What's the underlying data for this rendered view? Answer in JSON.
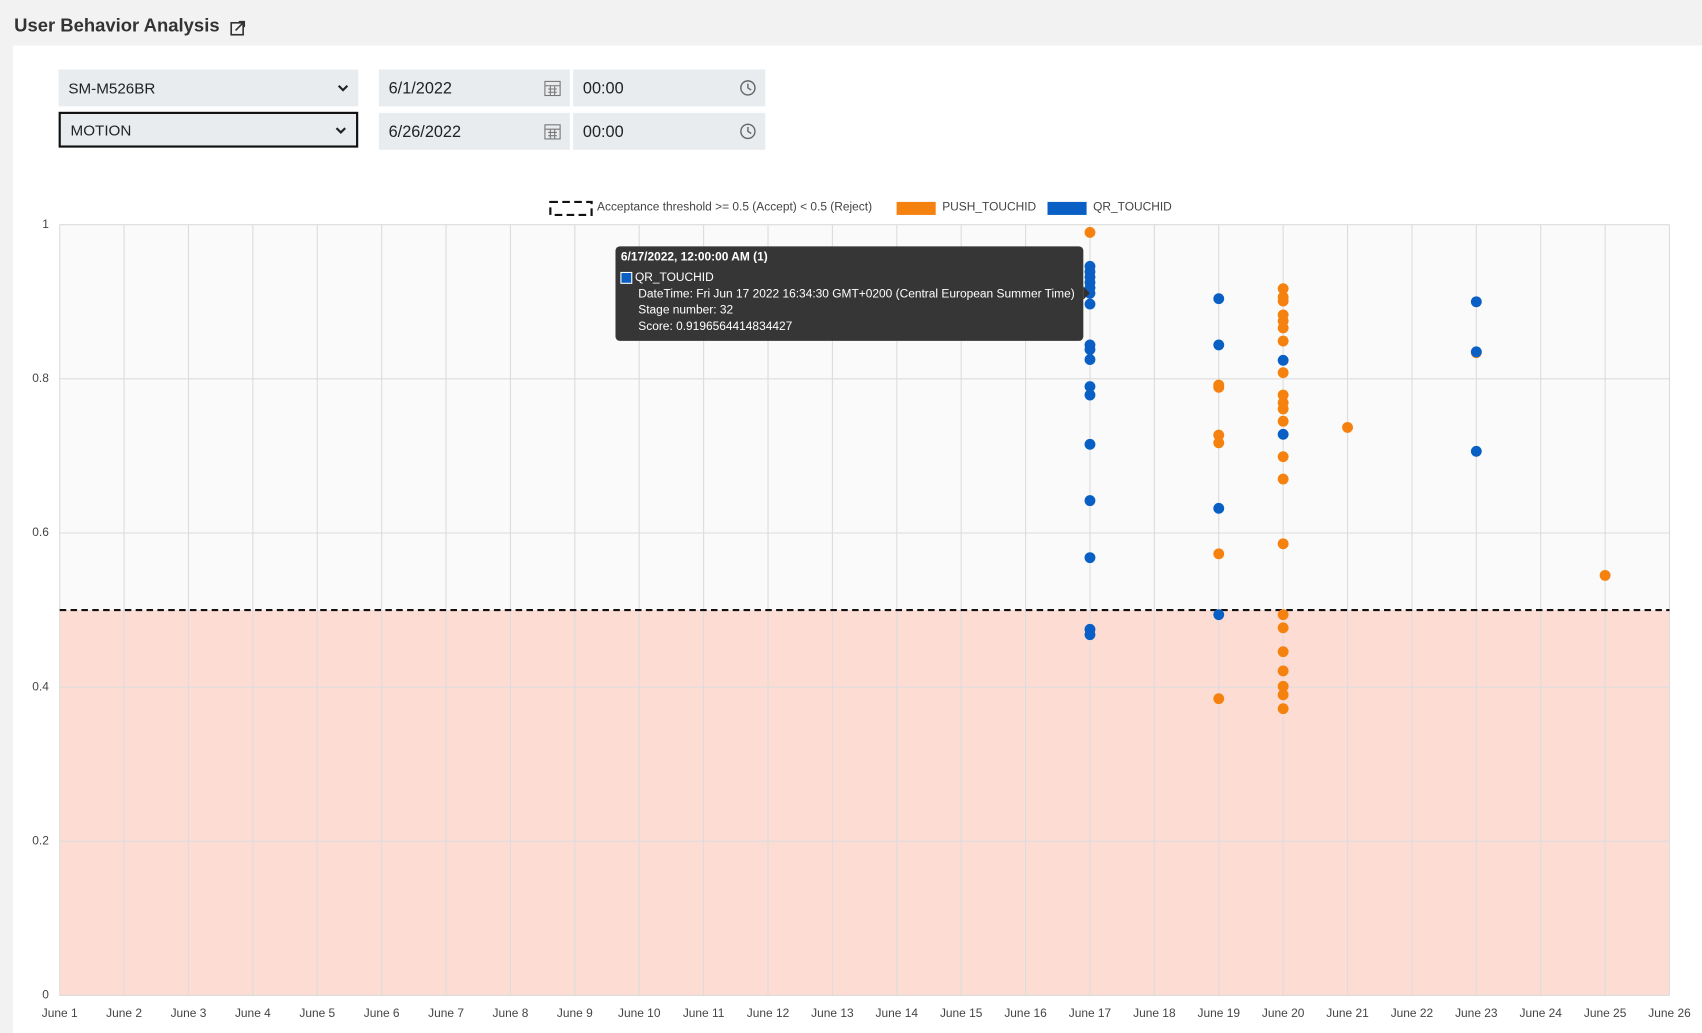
{
  "header": {
    "title": "User Behavior Analysis"
  },
  "filters": {
    "device": "SM-M526BR",
    "method": "MOTION",
    "start_date": "6/1/2022",
    "start_time": "00:00",
    "end_date": "6/26/2022",
    "end_time": "00:00"
  },
  "chart_data": {
    "type": "scatter",
    "threshold": 0.5,
    "threshold_legend": "Acceptance threshold  >= 0.5 (Accept)  < 0.5 (Reject)",
    "categories": [
      "June 1",
      "June 2",
      "June 3",
      "June 4",
      "June 5",
      "June 6",
      "June 7",
      "June 8",
      "June 9",
      "June 10",
      "June 11",
      "June 12",
      "June 13",
      "June 14",
      "June 15",
      "June 16",
      "June 17",
      "June 18",
      "June 19",
      "June 20",
      "June 21",
      "June 22",
      "June 23",
      "June 24",
      "June 25",
      "June 26"
    ],
    "ylim": [
      0,
      1
    ],
    "yticks": [
      0,
      0.2,
      0.4,
      0.6,
      0.8,
      1
    ],
    "grid": true,
    "series": [
      {
        "name": "PUSH_TOUCHID",
        "color": "#f5820f",
        "x": [
          "June 17",
          "June 19",
          "June 19",
          "June 19",
          "June 19",
          "June 19",
          "June 19",
          "June 20",
          "June 20",
          "June 20",
          "June 20",
          "June 20",
          "June 20",
          "June 20",
          "June 20",
          "June 20",
          "June 20",
          "June 20",
          "June 20",
          "June 20",
          "June 20",
          "June 20",
          "June 20",
          "June 20",
          "June 20",
          "June 20",
          "June 20",
          "June 20",
          "June 20",
          "June 21",
          "June 23",
          "June 25"
        ],
        "values": [
          0.99,
          0.792,
          0.789,
          0.727,
          0.717,
          0.573,
          0.385,
          0.917,
          0.906,
          0.901,
          0.883,
          0.875,
          0.866,
          0.849,
          0.808,
          0.779,
          0.769,
          0.761,
          0.745,
          0.699,
          0.67,
          0.586,
          0.494,
          0.477,
          0.446,
          0.421,
          0.401,
          0.39,
          0.372,
          0.737,
          0.834,
          0.545
        ]
      },
      {
        "name": "QR_TOUCHID",
        "color": "#0a5fc4",
        "x": [
          "June 17",
          "June 17",
          "June 17",
          "June 17",
          "June 17",
          "June 17",
          "June 17",
          "June 17",
          "June 17",
          "June 17",
          "June 17",
          "June 17",
          "June 17",
          "June 17",
          "June 17",
          "June 17",
          "June 17",
          "June 19",
          "June 19",
          "June 19",
          "June 19",
          "June 20",
          "June 20",
          "June 23",
          "June 23",
          "June 23"
        ],
        "values": [
          0.946,
          0.939,
          0.932,
          0.925,
          0.918,
          0.911,
          0.897,
          0.844,
          0.838,
          0.825,
          0.79,
          0.779,
          0.715,
          0.642,
          0.568,
          0.475,
          0.468,
          0.904,
          0.844,
          0.632,
          0.494,
          0.824,
          0.728,
          0.9,
          0.835,
          0.706
        ]
      }
    ],
    "tooltip": {
      "title": "6/17/2022, 12:00:00 AM (1)",
      "datetime": "DateTime: Fri Jun 17 2022 16:34:30 GMT+0200 (Central European Summer Time)",
      "stage": "Stage number: 32",
      "score": "Score: 0.9196564414834427"
    }
  }
}
